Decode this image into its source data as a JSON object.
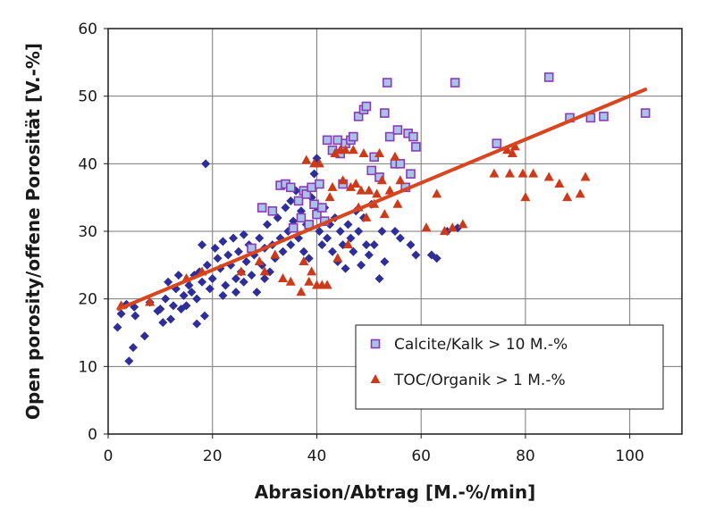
{
  "chart_data": {
    "type": "scatter",
    "xlabel": "Abrasion/Abtrag [M.-%/min]",
    "ylabel": "Open porosity/offene Porosität [V.-%]",
    "xlim": [
      0,
      110
    ],
    "ylim": [
      0,
      60
    ],
    "x_ticks": [
      "0",
      "20",
      "40",
      "60",
      "80",
      "100"
    ],
    "y_ticks": [
      "0",
      "10",
      "20",
      "30",
      "40",
      "50",
      "60"
    ],
    "grid": true,
    "legend_position": "lower-right",
    "colors": {
      "all": "#2e2e9a",
      "calcite_fill": "#a9c3e6",
      "calcite_stroke": "#8a3ab8",
      "toc": "#cc3a1a",
      "trend": "#d9451e"
    },
    "series": [
      {
        "marker": "diamond",
        "points": [
          [
            1.8,
            15.8
          ],
          [
            2.5,
            17.8
          ],
          [
            3.5,
            19.2
          ],
          [
            4,
            10.8
          ],
          [
            4.8,
            12.8
          ],
          [
            5.2,
            17.5
          ],
          [
            5,
            18.8
          ],
          [
            7,
            14.5
          ],
          [
            8,
            19.5
          ],
          [
            9.5,
            18.2
          ],
          [
            10,
            18.5
          ],
          [
            10.5,
            16.5
          ],
          [
            11,
            20
          ],
          [
            11.5,
            22.5
          ],
          [
            12,
            17
          ],
          [
            12.5,
            19
          ],
          [
            13,
            21.5
          ],
          [
            13.5,
            23.5
          ],
          [
            14,
            18.5
          ],
          [
            14.5,
            20.5
          ],
          [
            15,
            19
          ],
          [
            15.5,
            22
          ],
          [
            16,
            21
          ],
          [
            16.5,
            23.5
          ],
          [
            17,
            16.3
          ],
          [
            17,
            20
          ],
          [
            17.5,
            24
          ],
          [
            18,
            28
          ],
          [
            18,
            22.5
          ],
          [
            18.5,
            17.5
          ],
          [
            18.7,
            40
          ],
          [
            19,
            25
          ],
          [
            19.5,
            21.5
          ],
          [
            20,
            23
          ],
          [
            20.5,
            27.5
          ],
          [
            21,
            26
          ],
          [
            21.5,
            24.5
          ],
          [
            22,
            20.5
          ],
          [
            22,
            28.5
          ],
          [
            22.5,
            22
          ],
          [
            23,
            26.5
          ],
          [
            23.5,
            25
          ],
          [
            24,
            29
          ],
          [
            24.5,
            23
          ],
          [
            24.5,
            21
          ],
          [
            25,
            27
          ],
          [
            25.5,
            24
          ],
          [
            26,
            22.5
          ],
          [
            26,
            29.5
          ],
          [
            26.5,
            25.5
          ],
          [
            27,
            28
          ],
          [
            27.5,
            23.5
          ],
          [
            28,
            26.5
          ],
          [
            28.5,
            21
          ],
          [
            29,
            29
          ],
          [
            29.5,
            25
          ],
          [
            30,
            27.5
          ],
          [
            30,
            23
          ],
          [
            30.5,
            31
          ],
          [
            31,
            24
          ],
          [
            31.5,
            28
          ],
          [
            32,
            26
          ],
          [
            32.5,
            32
          ],
          [
            33,
            29
          ],
          [
            33.5,
            27
          ],
          [
            34,
            33.5
          ],
          [
            34.5,
            30
          ],
          [
            35,
            28
          ],
          [
            35,
            34.5
          ],
          [
            35.5,
            31.5
          ],
          [
            36,
            36
          ],
          [
            36.5,
            29
          ],
          [
            37,
            33
          ],
          [
            37.5,
            27
          ],
          [
            38,
            31
          ],
          [
            38.5,
            26
          ],
          [
            39,
            35
          ],
          [
            39.5,
            38.5
          ],
          [
            40,
            40.8
          ],
          [
            40,
            33
          ],
          [
            40.5,
            30
          ],
          [
            41,
            28
          ],
          [
            41.5,
            33.5
          ],
          [
            42,
            29
          ],
          [
            42.5,
            31
          ],
          [
            43,
            27
          ],
          [
            43.5,
            32
          ],
          [
            44,
            25.5
          ],
          [
            44.5,
            30
          ],
          [
            45,
            28
          ],
          [
            45.5,
            24.5
          ],
          [
            46,
            31
          ],
          [
            46.5,
            29
          ],
          [
            47,
            27
          ],
          [
            47.5,
            33
          ],
          [
            48,
            30
          ],
          [
            48.5,
            25
          ],
          [
            49,
            32
          ],
          [
            49.5,
            28
          ],
          [
            50,
            26.5
          ],
          [
            50.5,
            34
          ],
          [
            51,
            28
          ],
          [
            52,
            23
          ],
          [
            52.5,
            30
          ],
          [
            53,
            25.5
          ],
          [
            55,
            30
          ],
          [
            56,
            29
          ],
          [
            58,
            28
          ],
          [
            59,
            26.5
          ],
          [
            62,
            26.5
          ],
          [
            63,
            26
          ],
          [
            65,
            30
          ],
          [
            67,
            30.5
          ]
        ]
      },
      {
        "name": "Calcite/Kalk > 10 M.-%",
        "marker": "square",
        "points": [
          [
            27.5,
            27.5
          ],
          [
            29.5,
            33.5
          ],
          [
            31.5,
            33
          ],
          [
            33,
            36.8
          ],
          [
            34,
            37
          ],
          [
            35,
            36.5
          ],
          [
            35.5,
            30.5
          ],
          [
            36.5,
            34.5
          ],
          [
            37,
            32
          ],
          [
            37.5,
            36
          ],
          [
            38,
            35.5
          ],
          [
            38.5,
            31
          ],
          [
            39,
            36.5
          ],
          [
            39.5,
            34
          ],
          [
            40,
            32.5
          ],
          [
            40.5,
            37
          ],
          [
            41,
            33.5
          ],
          [
            41.5,
            31.5
          ],
          [
            42,
            43.5
          ],
          [
            43,
            42
          ],
          [
            44,
            43.5
          ],
          [
            44.5,
            41.5
          ],
          [
            45,
            37
          ],
          [
            45.5,
            43
          ],
          [
            46.5,
            43.5
          ],
          [
            47,
            44
          ],
          [
            48,
            47
          ],
          [
            49,
            48
          ],
          [
            49.5,
            48.5
          ],
          [
            50.5,
            39
          ],
          [
            51,
            41
          ],
          [
            52,
            38
          ],
          [
            53,
            47.5
          ],
          [
            53.5,
            52
          ],
          [
            54,
            44
          ],
          [
            55,
            40
          ],
          [
            55.5,
            45
          ],
          [
            56,
            40
          ],
          [
            57,
            36.5
          ],
          [
            57.5,
            44.5
          ],
          [
            58,
            38.5
          ],
          [
            58.5,
            44
          ],
          [
            59,
            42.5
          ],
          [
            66.5,
            52
          ],
          [
            74.5,
            43
          ],
          [
            84.5,
            52.8
          ],
          [
            88.5,
            46.8
          ],
          [
            92.5,
            46.8
          ],
          [
            95,
            47
          ],
          [
            103,
            47.5
          ]
        ]
      },
      {
        "name": "TOC/Organik > 1 M.-%",
        "marker": "triangle",
        "points": [
          [
            2.5,
            19
          ],
          [
            8,
            19.5
          ],
          [
            15,
            23
          ],
          [
            18,
            24
          ],
          [
            25.5,
            24
          ],
          [
            29,
            25.5
          ],
          [
            30,
            24
          ],
          [
            32,
            26.5
          ],
          [
            33.5,
            23
          ],
          [
            35,
            22.5
          ],
          [
            37,
            21
          ],
          [
            37.5,
            25.5
          ],
          [
            38,
            40.5
          ],
          [
            38.5,
            22.5
          ],
          [
            39,
            24
          ],
          [
            39.5,
            40
          ],
          [
            40,
            22
          ],
          [
            40.5,
            40
          ],
          [
            41,
            22
          ],
          [
            42,
            22
          ],
          [
            42.5,
            35
          ],
          [
            43,
            36.5
          ],
          [
            43.5,
            41.5
          ],
          [
            44,
            26
          ],
          [
            44.5,
            42
          ],
          [
            45,
            37.5
          ],
          [
            45.5,
            42
          ],
          [
            46,
            28
          ],
          [
            46.5,
            36.5
          ],
          [
            47,
            42
          ],
          [
            47.5,
            37
          ],
          [
            48,
            33.5
          ],
          [
            48.5,
            36
          ],
          [
            49,
            41.5
          ],
          [
            49.5,
            32
          ],
          [
            50,
            36
          ],
          [
            51,
            34
          ],
          [
            51.5,
            35.5
          ],
          [
            52,
            41.5
          ],
          [
            52.5,
            37.5
          ],
          [
            53,
            32.5
          ],
          [
            54,
            36
          ],
          [
            55,
            41
          ],
          [
            55.5,
            34
          ],
          [
            56,
            37.5
          ],
          [
            61,
            30.5
          ],
          [
            63,
            35.5
          ],
          [
            64.5,
            30
          ],
          [
            66,
            30.5
          ],
          [
            68,
            31
          ],
          [
            74,
            38.5
          ],
          [
            76.5,
            42
          ],
          [
            77,
            38.5
          ],
          [
            77.5,
            41.5
          ],
          [
            78,
            42.5
          ],
          [
            79.5,
            38.5
          ],
          [
            80,
            35
          ],
          [
            81.5,
            38.5
          ],
          [
            84.5,
            38
          ],
          [
            86.5,
            37
          ],
          [
            88,
            35
          ],
          [
            90.5,
            35.5
          ],
          [
            91.5,
            38
          ]
        ]
      }
    ],
    "trendline": [
      [
        2,
        18.5
      ],
      [
        103,
        51
      ]
    ],
    "legend": [
      {
        "label": "Calcite/Kalk > 10 M.-%",
        "marker": "square"
      },
      {
        "label": "TOC/Organik > 1 M.-%",
        "marker": "triangle"
      }
    ]
  }
}
